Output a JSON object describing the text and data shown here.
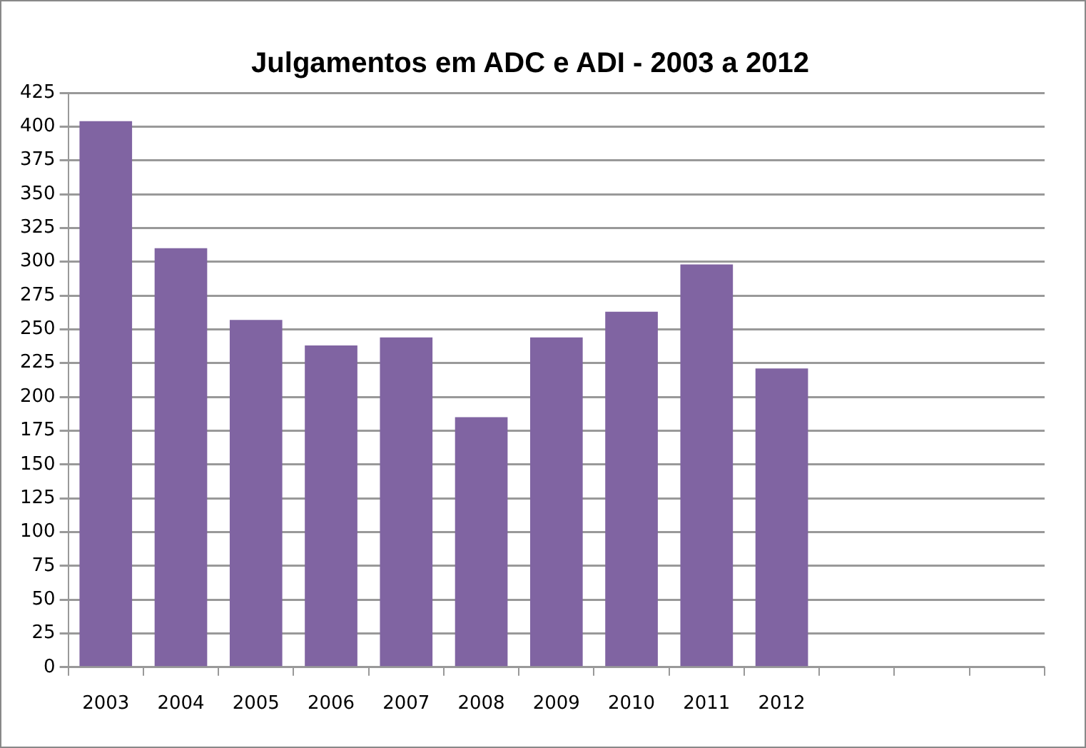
{
  "chart_data": {
    "type": "bar",
    "title": "Julgamentos em ADC e ADI - 2003 a 2012",
    "categories": [
      "2003",
      "2004",
      "2005",
      "2006",
      "2007",
      "2008",
      "2009",
      "2010",
      "2011",
      "2012",
      null,
      null,
      null
    ],
    "values": [
      404,
      310,
      257,
      238,
      244,
      185,
      244,
      263,
      298,
      221,
      null,
      null,
      null
    ],
    "color": "#8064a2",
    "ylim": [
      0,
      425
    ],
    "yticks": [
      0,
      25,
      50,
      75,
      100,
      125,
      150,
      175,
      200,
      225,
      250,
      275,
      300,
      325,
      350,
      375,
      400,
      425
    ],
    "grid": "y",
    "legend": false
  }
}
